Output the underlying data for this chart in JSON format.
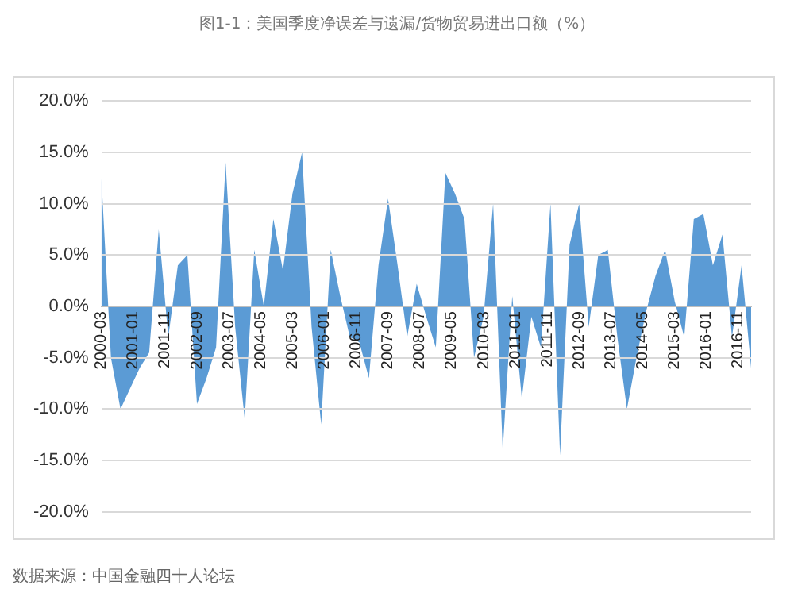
{
  "chart_data": {
    "type": "area",
    "title": "图1-1：美国季度净误差与遗漏/货物贸易进出口额（%）",
    "annotations": [
      "数据来源：中国金融四十人论坛"
    ],
    "x": [
      "2000-03",
      "2000-06",
      "2000-09",
      "2000-12",
      "2001-03",
      "2001-06",
      "2001-09",
      "2001-12",
      "2002-03",
      "2002-06",
      "2002-09",
      "2002-12",
      "2003-03",
      "2003-06",
      "2003-09",
      "2003-12",
      "2004-03",
      "2004-06",
      "2004-09",
      "2004-12",
      "2005-03",
      "2005-06",
      "2005-09",
      "2005-12",
      "2006-03",
      "2006-06",
      "2006-09",
      "2006-12",
      "2007-03",
      "2007-06",
      "2007-09",
      "2007-12",
      "2008-03",
      "2008-06",
      "2008-09",
      "2008-12",
      "2009-03",
      "2009-06",
      "2009-09",
      "2009-12",
      "2010-03",
      "2010-06",
      "2010-09",
      "2010-12",
      "2011-03",
      "2011-06",
      "2011-09",
      "2011-12",
      "2012-03",
      "2012-06",
      "2012-09",
      "2012-12",
      "2013-03",
      "2013-06",
      "2013-09",
      "2013-12",
      "2014-03",
      "2014-06",
      "2014-09",
      "2014-12",
      "2015-03",
      "2015-06",
      "2015-09",
      "2015-12",
      "2016-03",
      "2016-06",
      "2016-09",
      "2016-12",
      "2017-03"
    ],
    "series": [
      {
        "color": "#5b9bd5",
        "values": [
          12.5,
          -5,
          -10,
          -8,
          -6,
          -4.5,
          7.5,
          -3,
          4,
          5,
          -9.5,
          -7,
          -4,
          14,
          -2,
          -11,
          5.5,
          0,
          8.5,
          3.5,
          11,
          15,
          -2,
          -11.5,
          5.5,
          1,
          -3,
          -3.5,
          -7,
          4,
          10.5,
          4,
          -3,
          2.2,
          -1,
          -4,
          13,
          11,
          8.5,
          -5,
          -1,
          10,
          -14,
          1,
          -9,
          -1,
          -4,
          10,
          -14.5,
          6,
          10,
          -2,
          5,
          5.5,
          -3,
          -10,
          -5,
          -0.5,
          3,
          5.5,
          0.5,
          -3,
          8.5,
          9,
          4,
          7,
          -3,
          4,
          -6
        ]
      }
    ],
    "xlim": [
      "2000-03",
      "2017-03"
    ],
    "xticks": [
      "2000-03",
      "2001-01",
      "2001-11",
      "2002-09",
      "2003-07",
      "2004-05",
      "2005-03",
      "2006-01",
      "2006-11",
      "2007-09",
      "2008-07",
      "2009-05",
      "2010-03",
      "2011-01",
      "2011-11",
      "2012-09",
      "2013-07",
      "2014-05",
      "2015-03",
      "2016-01",
      "2016-11"
    ],
    "ylim": [
      -20,
      20
    ],
    "yticks": [
      {
        "value": -20,
        "label": "-20.0%"
      },
      {
        "value": -15,
        "label": "-15.0%"
      },
      {
        "value": -10,
        "label": "-10.0%"
      },
      {
        "value": -5,
        "label": "-5.0%"
      },
      {
        "value": 0,
        "label": "0.0%"
      },
      {
        "value": 5,
        "label": "5.0%"
      },
      {
        "value": 10,
        "label": "10.0%"
      },
      {
        "value": 15,
        "label": "15.0%"
      },
      {
        "value": 20,
        "label": "20.0%"
      }
    ],
    "grid": "y",
    "legend": false
  }
}
